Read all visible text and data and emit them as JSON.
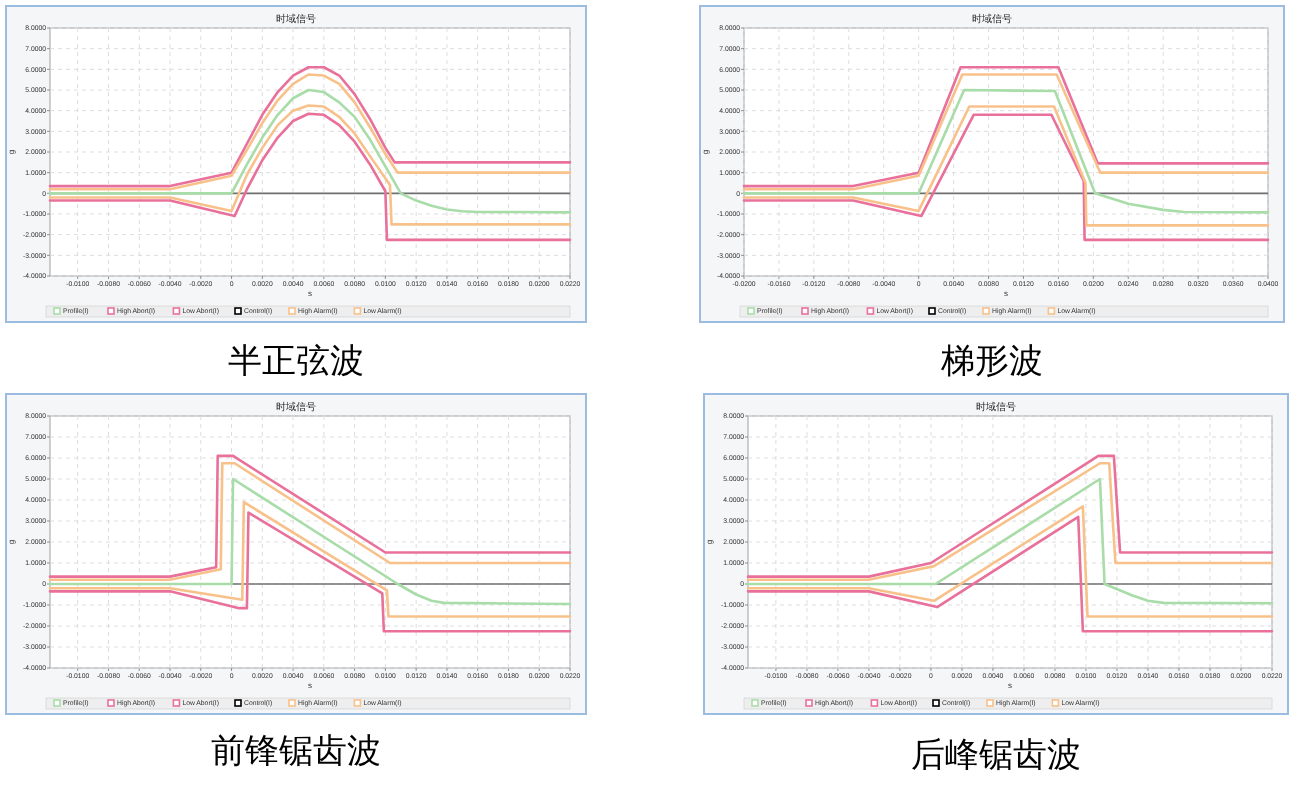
{
  "chart_data": [
    {
      "type": "line",
      "title": "时域信号",
      "xlabel": "s",
      "ylabel": "g",
      "annotations": [
        "半正弦波"
      ],
      "grid": true,
      "legend": "bottom",
      "xlim": [
        -0.0118,
        0.022
      ],
      "xticks": [
        {
          "value": -0.01,
          "label": "-0.0100"
        },
        {
          "value": -0.008,
          "label": "-0.0080"
        },
        {
          "value": -0.006,
          "label": "-0.0060"
        },
        {
          "value": -0.004,
          "label": "-0.0040"
        },
        {
          "value": -0.002,
          "label": "-0.0020"
        },
        {
          "value": 0,
          "label": "0"
        },
        {
          "value": 0.002,
          "label": "0.0020"
        },
        {
          "value": 0.004,
          "label": "0.0040"
        },
        {
          "value": 0.006,
          "label": "0.0060"
        },
        {
          "value": 0.008,
          "label": "0.0080"
        },
        {
          "value": 0.01,
          "label": "0.0100"
        },
        {
          "value": 0.012,
          "label": "0.0120"
        },
        {
          "value": 0.014,
          "label": "0.0140"
        },
        {
          "value": 0.016,
          "label": "0.0160"
        },
        {
          "value": 0.018,
          "label": "0.0180"
        },
        {
          "value": 0.02,
          "label": "0.0200"
        },
        {
          "value": 0.022,
          "label": "0.0220"
        }
      ],
      "ylim": [
        -4,
        8
      ],
      "yticks": [
        {
          "value": -4,
          "label": "-4.0000"
        },
        {
          "value": -3,
          "label": "-3.0000"
        },
        {
          "value": -2,
          "label": "-2.0000"
        },
        {
          "value": -1,
          "label": "-1.0000"
        },
        {
          "value": 0,
          "label": "0"
        },
        {
          "value": 1,
          "label": "1.0000"
        },
        {
          "value": 2,
          "label": "2.0000"
        },
        {
          "value": 3,
          "label": "3.0000"
        },
        {
          "value": 4,
          "label": "4.0000"
        },
        {
          "value": 5,
          "label": "5.0000"
        },
        {
          "value": 6,
          "label": "6.0000"
        },
        {
          "value": 7,
          "label": "7.0000"
        },
        {
          "value": 8,
          "label": "8.0000"
        }
      ],
      "ref_lines": [
        {
          "axis": "y",
          "value": 0,
          "color": "#707070"
        }
      ],
      "series": [
        {
          "name": "Profile(I)",
          "color": "#a8dca8",
          "x": [
            -0.0118,
            0,
            0.001,
            0.002,
            0.003,
            0.004,
            0.005,
            0.006,
            0.007,
            0.008,
            0.009,
            0.01,
            0.011,
            0.012,
            0.013,
            0.014,
            0.015,
            0.016,
            0.022
          ],
          "values": [
            0,
            0,
            1.4,
            2.7,
            3.8,
            4.6,
            5,
            4.9,
            4.4,
            3.7,
            2.6,
            1.3,
            0,
            -0.35,
            -0.6,
            -0.78,
            -0.87,
            -0.9,
            -0.92
          ]
        },
        {
          "name": "High Abort(I)",
          "color": "#e8709b",
          "x": [
            -0.0118,
            -0.004,
            0,
            0.001,
            0.002,
            0.003,
            0.004,
            0.005,
            0.006,
            0.007,
            0.008,
            0.009,
            0.01,
            0.0106,
            0.022
          ],
          "values": [
            0.35,
            0.35,
            1,
            2.4,
            3.8,
            4.9,
            5.7,
            6.1,
            6.1,
            5.7,
            4.8,
            3.6,
            2.2,
            1.5,
            1.5
          ]
        },
        {
          "name": "Low Abort(I)",
          "color": "#e8709b",
          "x": [
            -0.0118,
            -0.004,
            0.0002,
            0.001,
            0.002,
            0.003,
            0.004,
            0.005,
            0.006,
            0.007,
            0.008,
            0.009,
            0.01,
            0.0101,
            0.022
          ],
          "values": [
            -0.35,
            -0.35,
            -1.1,
            0.2,
            1.6,
            2.7,
            3.5,
            3.85,
            3.8,
            3.3,
            2.5,
            1.4,
            0.1,
            -2.25,
            -2.25
          ]
        },
        {
          "name": "Control(I)",
          "color": "#000000"
        },
        {
          "name": "High Alarm(I)",
          "color": "#f8c18a",
          "x": [
            -0.0118,
            -0.004,
            0,
            0.001,
            0.002,
            0.003,
            0.004,
            0.005,
            0.006,
            0.007,
            0.008,
            0.009,
            0.01,
            0.0108,
            0.022
          ],
          "values": [
            0.2,
            0.2,
            0.85,
            2.1,
            3.4,
            4.5,
            5.3,
            5.75,
            5.7,
            5.3,
            4.4,
            3.2,
            1.9,
            1,
            1
          ]
        },
        {
          "name": "Low Alarm(I)",
          "color": "#f8c18a",
          "x": [
            -0.0118,
            -0.004,
            0,
            0.001,
            0.002,
            0.003,
            0.004,
            0.005,
            0.006,
            0.007,
            0.008,
            0.009,
            0.0103,
            0.0104,
            0.022
          ],
          "values": [
            -0.2,
            -0.2,
            -0.85,
            0.9,
            2.2,
            3.3,
            4,
            4.25,
            4.2,
            3.7,
            2.9,
            1.8,
            0.4,
            -1.5,
            -1.5
          ]
        }
      ]
    },
    {
      "type": "line",
      "title": "时域信号",
      "xlabel": "s",
      "ylabel": "g",
      "annotations": [
        "梯形波"
      ],
      "grid": true,
      "legend": "bottom",
      "xlim": [
        -0.02,
        0.04
      ],
      "xticks": [
        {
          "value": -0.02,
          "label": "-0.0200"
        },
        {
          "value": -0.016,
          "label": "-0.0160"
        },
        {
          "value": -0.012,
          "label": "-0.0120"
        },
        {
          "value": -0.008,
          "label": "-0.0080"
        },
        {
          "value": -0.004,
          "label": "-0.0040"
        },
        {
          "value": 0,
          "label": "0"
        },
        {
          "value": 0.004,
          "label": "0.0040"
        },
        {
          "value": 0.008,
          "label": "0.0080"
        },
        {
          "value": 0.012,
          "label": "0.0120"
        },
        {
          "value": 0.016,
          "label": "0.0160"
        },
        {
          "value": 0.02,
          "label": "0.0200"
        },
        {
          "value": 0.024,
          "label": "0.0240"
        },
        {
          "value": 0.028,
          "label": "0.0280"
        },
        {
          "value": 0.032,
          "label": "0.0320"
        },
        {
          "value": 0.036,
          "label": "0.0360"
        },
        {
          "value": 0.04,
          "label": "0.0400"
        }
      ],
      "ylim": [
        -4,
        8
      ],
      "yticks": [
        {
          "value": -4,
          "label": "-4.0000"
        },
        {
          "value": -3,
          "label": "-3.0000"
        },
        {
          "value": -2,
          "label": "-2.0000"
        },
        {
          "value": -1,
          "label": "-1.0000"
        },
        {
          "value": 0,
          "label": "0"
        },
        {
          "value": 1,
          "label": "1.0000"
        },
        {
          "value": 2,
          "label": "2.0000"
        },
        {
          "value": 3,
          "label": "3.0000"
        },
        {
          "value": 4,
          "label": "4.0000"
        },
        {
          "value": 5,
          "label": "5.0000"
        },
        {
          "value": 6,
          "label": "6.0000"
        },
        {
          "value": 7,
          "label": "7.0000"
        },
        {
          "value": 8,
          "label": "8.0000"
        }
      ],
      "ref_lines": [
        {
          "axis": "y",
          "value": 0,
          "color": "#707070"
        }
      ],
      "series": [
        {
          "name": "Profile(I)",
          "color": "#a8dca8",
          "x": [
            -0.02,
            0,
            0.0052,
            0.0156,
            0.0202,
            0.024,
            0.028,
            0.0304,
            0.04
          ],
          "values": [
            0,
            0,
            5,
            4.95,
            0,
            -0.5,
            -0.8,
            -0.9,
            -0.92
          ]
        },
        {
          "name": "High Abort(I)",
          "color": "#e8709b",
          "x": [
            -0.02,
            -0.0075,
            0,
            0.0048,
            0.016,
            0.0205,
            0.04
          ],
          "values": [
            0.35,
            0.35,
            1,
            6.1,
            6.1,
            1.45,
            1.45
          ]
        },
        {
          "name": "Low Abort(I)",
          "color": "#e8709b",
          "x": [
            -0.02,
            -0.0075,
            0.0003,
            0.0063,
            0.0152,
            0.0189,
            0.019,
            0.04
          ],
          "values": [
            -0.35,
            -0.35,
            -1.1,
            3.8,
            3.8,
            0.6,
            -2.25,
            -2.25
          ]
        },
        {
          "name": "Control(I)",
          "color": "#000000"
        },
        {
          "name": "High Alarm(I)",
          "color": "#f8c18a",
          "x": [
            -0.02,
            -0.0075,
            0,
            0.005,
            0.0158,
            0.0208,
            0.04
          ],
          "values": [
            0.2,
            0.2,
            0.85,
            5.75,
            5.75,
            1,
            1
          ]
        },
        {
          "name": "Low Alarm(I)",
          "color": "#f8c18a",
          "x": [
            -0.02,
            -0.0075,
            0,
            0.0058,
            0.0155,
            0.0191,
            0.0192,
            0.04
          ],
          "values": [
            -0.2,
            -0.2,
            -0.85,
            4.2,
            4.2,
            0.5,
            -1.55,
            -1.55
          ]
        }
      ]
    },
    {
      "type": "line",
      "title": "时域信号",
      "xlabel": "s",
      "ylabel": "g",
      "annotations": [
        "前锋锯齿波"
      ],
      "grid": true,
      "legend": "bottom",
      "xlim": [
        -0.0118,
        0.022
      ],
      "xticks": [
        {
          "value": -0.01,
          "label": "-0.0100"
        },
        {
          "value": -0.008,
          "label": "-0.0080"
        },
        {
          "value": -0.006,
          "label": "-0.0060"
        },
        {
          "value": -0.004,
          "label": "-0.0040"
        },
        {
          "value": -0.002,
          "label": "-0.0020"
        },
        0,
        {
          "value": 0.002,
          "label": "0.0020"
        },
        {
          "value": 0.004,
          "label": "0.0040"
        },
        {
          "value": 0.006,
          "label": "0.0060"
        },
        {
          "value": 0.008,
          "label": "0.0080"
        },
        {
          "value": 0.01,
          "label": "0.0100"
        },
        {
          "value": 0.012,
          "label": "0.0120"
        },
        {
          "value": 0.014,
          "label": "0.0140"
        },
        {
          "value": 0.016,
          "label": "0.0160"
        },
        {
          "value": 0.018,
          "label": "0.0180"
        },
        {
          "value": 0.02,
          "label": "0.0200"
        },
        {
          "value": 0.022,
          "label": "0.0220"
        }
      ],
      "ylim": [
        -4,
        8
      ],
      "yticks": [
        {
          "value": -4,
          "label": "-4.0000"
        },
        {
          "value": -3,
          "label": "-3.0000"
        },
        {
          "value": -2,
          "label": "-2.0000"
        },
        {
          "value": -1,
          "label": "-1.0000"
        },
        {
          "value": 0,
          "label": "0"
        },
        {
          "value": 1,
          "label": "1.0000"
        },
        {
          "value": 2,
          "label": "2.0000"
        },
        {
          "value": 3,
          "label": "3.0000"
        },
        {
          "value": 4,
          "label": "4.0000"
        },
        {
          "value": 5,
          "label": "5.0000"
        },
        {
          "value": 6,
          "label": "6.0000"
        },
        {
          "value": 7,
          "label": "7.0000"
        },
        {
          "value": 8,
          "label": "8.0000"
        }
      ],
      "ref_lines": [
        {
          "axis": "y",
          "value": 0,
          "color": "#707070"
        }
      ],
      "series": [
        {
          "name": "Profile(I)",
          "color": "#a8dca8",
          "x": [
            -0.0118,
            0,
            0.0001,
            0.0108,
            0.012,
            0.013,
            0.0138,
            0.022
          ],
          "values": [
            0,
            0,
            5,
            0,
            -0.5,
            -0.8,
            -0.9,
            -0.95
          ]
        },
        {
          "name": "High Abort(I)",
          "color": "#e8709b",
          "x": [
            -0.0118,
            -0.004,
            -0.001,
            -0.0009,
            0.0001,
            0.01,
            0.022
          ],
          "values": [
            0.35,
            0.35,
            0.8,
            6.1,
            6.1,
            1.5,
            1.5
          ]
        },
        {
          "name": "Low Abort(I)",
          "color": "#e8709b",
          "x": [
            -0.0118,
            -0.004,
            0.0005,
            0.001,
            0.0011,
            0.0098,
            0.0099,
            0.022
          ],
          "values": [
            -0.35,
            -0.35,
            -1.15,
            -1.15,
            3.4,
            -0.45,
            -2.25,
            -2.25
          ]
        },
        {
          "name": "Control(I)",
          "color": "#000000"
        },
        {
          "name": "High Alarm(I)",
          "color": "#f8c18a",
          "x": [
            -0.0118,
            -0.004,
            -0.0007,
            -0.0006,
            0.0002,
            0.0103,
            0.022
          ],
          "values": [
            0.2,
            0.2,
            0.7,
            5.75,
            5.75,
            1,
            1
          ]
        },
        {
          "name": "Low Alarm(I)",
          "color": "#f8c18a",
          "x": [
            -0.0118,
            -0.004,
            0.0007,
            0.0008,
            0.0101,
            0.0102,
            0.022
          ],
          "values": [
            -0.2,
            -0.2,
            -0.75,
            3.9,
            -0.3,
            -1.55,
            -1.55
          ]
        }
      ]
    },
    {
      "type": "line",
      "title": "时域信号",
      "xlabel": "s",
      "ylabel": "g",
      "annotations": [
        "后峰锯齿波"
      ],
      "grid": true,
      "legend": "bottom",
      "xlim": [
        -0.0118,
        0.022
      ],
      "xticks": [
        {
          "value": -0.01,
          "label": "-0.0100"
        },
        {
          "value": -0.008,
          "label": "-0.0080"
        },
        {
          "value": -0.006,
          "label": "-0.0060"
        },
        {
          "value": -0.004,
          "label": "-0.0040"
        },
        {
          "value": -0.002,
          "label": "-0.0020"
        },
        0,
        {
          "value": 0.002,
          "label": "0.0020"
        },
        {
          "value": 0.004,
          "label": "0.0040"
        },
        {
          "value": 0.006,
          "label": "0.0060"
        },
        {
          "value": 0.008,
          "label": "0.0080"
        },
        {
          "value": 0.01,
          "label": "0.0100"
        },
        {
          "value": 0.012,
          "label": "0.0120"
        },
        {
          "value": 0.014,
          "label": "0.0140"
        },
        {
          "value": 0.016,
          "label": "0.0160"
        },
        {
          "value": 0.018,
          "label": "0.0180"
        },
        {
          "value": 0.02,
          "label": "0.0200"
        },
        {
          "value": 0.022,
          "label": "0.0220"
        }
      ],
      "ylim": [
        -4,
        8
      ],
      "yticks": [
        {
          "value": -4,
          "label": "-4.0000"
        },
        {
          "value": -3,
          "label": "-3.0000"
        },
        {
          "value": -2,
          "label": "-2.0000"
        },
        {
          "value": -1,
          "label": "-1.0000"
        },
        {
          "value": 0,
          "label": "0"
        },
        {
          "value": 1,
          "label": "1.0000"
        },
        {
          "value": 2,
          "label": "2.0000"
        },
        {
          "value": 3,
          "label": "3.0000"
        },
        {
          "value": 4,
          "label": "4.0000"
        },
        {
          "value": 5,
          "label": "5.0000"
        },
        {
          "value": 6,
          "label": "6.0000"
        },
        {
          "value": 7,
          "label": "7.0000"
        },
        {
          "value": 8,
          "label": "8.0000"
        }
      ],
      "ref_lines": [
        {
          "axis": "y",
          "value": 0,
          "color": "#707070"
        }
      ],
      "series": [
        {
          "name": "Profile(I)",
          "color": "#a8dca8",
          "x": [
            -0.0118,
            0.0003,
            0.0109,
            0.0112,
            0.013,
            0.014,
            0.015,
            0.022
          ],
          "values": [
            0,
            0,
            5,
            0,
            -0.55,
            -0.8,
            -0.9,
            -0.92
          ]
        },
        {
          "name": "High Abort(I)",
          "color": "#e8709b",
          "x": [
            -0.0118,
            -0.004,
            0,
            0.0108,
            0.0118,
            0.0122,
            0.022
          ],
          "values": [
            0.35,
            0.35,
            1,
            6.1,
            6.1,
            1.5,
            1.5
          ]
        },
        {
          "name": "Low Abort(I)",
          "color": "#e8709b",
          "x": [
            -0.0118,
            -0.004,
            0.0004,
            0.0095,
            0.0098,
            0.022
          ],
          "values": [
            -0.35,
            -0.35,
            -1.1,
            3.2,
            -2.25,
            -2.25
          ]
        },
        {
          "name": "Control(I)",
          "color": "#000000"
        },
        {
          "name": "High Alarm(I)",
          "color": "#f8c18a",
          "x": [
            -0.0118,
            -0.004,
            0.0002,
            0.0109,
            0.0115,
            0.0119,
            0.022
          ],
          "values": [
            0.2,
            0.2,
            0.85,
            5.75,
            5.75,
            1,
            1
          ]
        },
        {
          "name": "Low Alarm(I)",
          "color": "#f8c18a",
          "x": [
            -0.0118,
            -0.004,
            0.0002,
            0.0098,
            0.0101,
            0.022
          ],
          "values": [
            -0.2,
            -0.2,
            -0.8,
            3.7,
            -1.55,
            -1.55
          ]
        }
      ]
    }
  ]
}
